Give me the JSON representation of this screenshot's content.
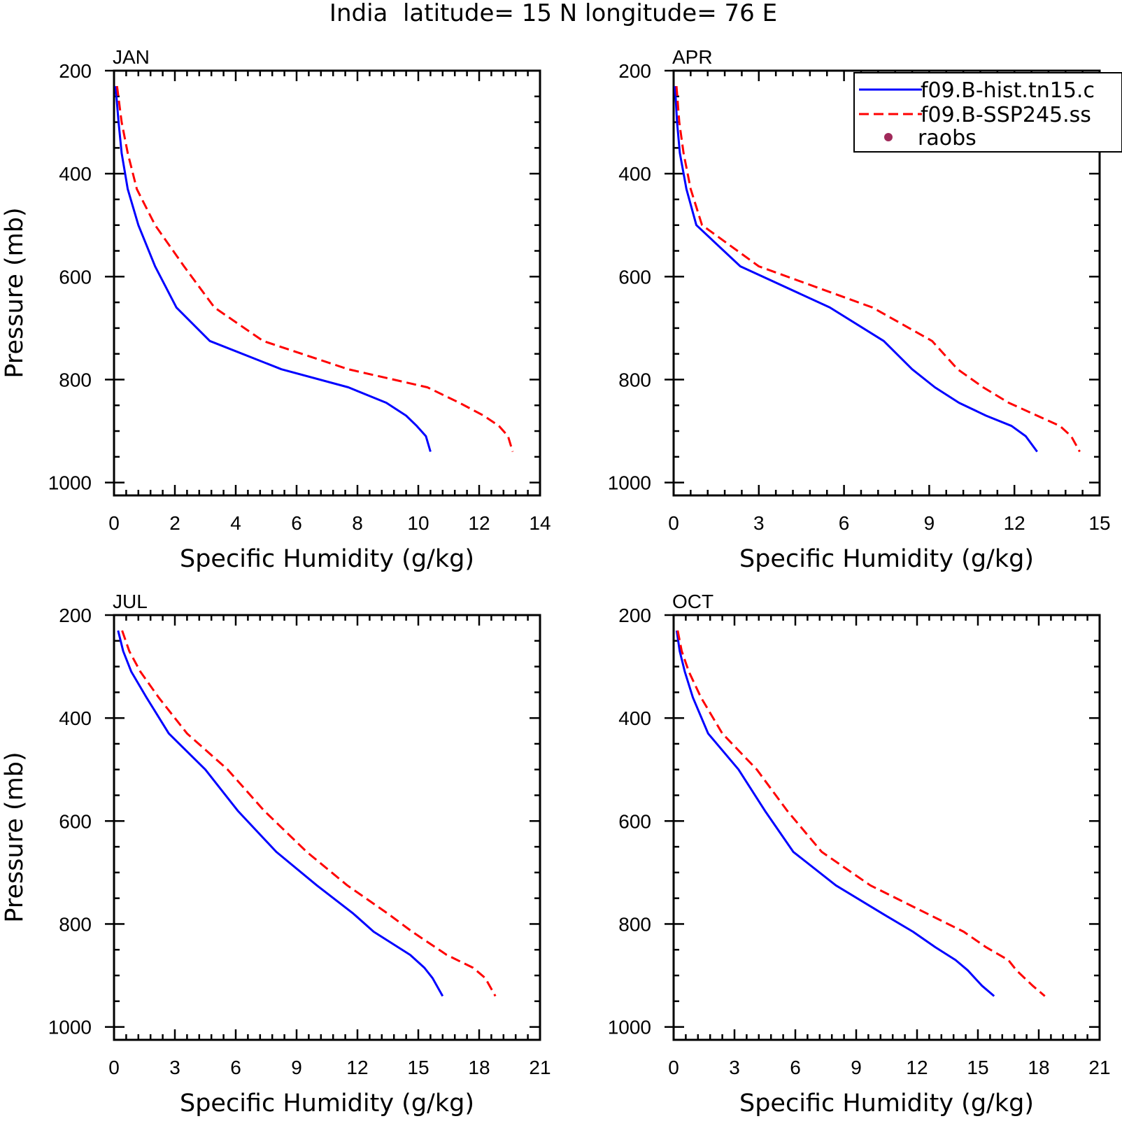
{
  "page_title": "India  latitude= 15 N longitude= 76 E",
  "legend": {
    "entries": [
      {
        "label": "f09.B-hist.tn15.c",
        "style": "solid",
        "color": "#0000ff"
      },
      {
        "label": "f09.B-SSP245.ss",
        "style": "dashed",
        "color": "#ff0000"
      },
      {
        "label": "raobs",
        "style": "dot",
        "color": "#a02a5a"
      }
    ]
  },
  "chart_data": [
    {
      "type": "line",
      "panel_label": "JAN",
      "xlabel": "Specific Humidity (g/kg)",
      "ylabel": "Pressure (mb)",
      "xlim": [
        0,
        14
      ],
      "ylim": [
        200,
        1025
      ],
      "xticks": [
        0,
        2,
        4,
        6,
        8,
        10,
        12,
        14
      ],
      "yticks": [
        200,
        400,
        600,
        800,
        1000
      ],
      "pressure": [
        230,
        300,
        360,
        430,
        500,
        580,
        660,
        725,
        780,
        815,
        845,
        870,
        890,
        910,
        940
      ],
      "series": [
        {
          "values": [
            0.05,
            0.15,
            0.25,
            0.45,
            0.8,
            1.35,
            2.05,
            3.15,
            5.5,
            7.7,
            8.95,
            9.6,
            9.95,
            10.25,
            10.4
          ]
        },
        {
          "values": [
            0.1,
            0.25,
            0.45,
            0.75,
            1.35,
            2.3,
            3.3,
            4.9,
            7.7,
            10.3,
            11.35,
            12.15,
            12.65,
            12.95,
            13.1
          ]
        }
      ]
    },
    {
      "type": "line",
      "panel_label": "APR",
      "xlabel": "Specific Humidity (g/kg)",
      "ylabel": "",
      "xlim": [
        0,
        15
      ],
      "ylim": [
        200,
        1025
      ],
      "xticks": [
        0,
        3,
        6,
        9,
        12,
        15
      ],
      "yticks": [
        200,
        400,
        600,
        800,
        1000
      ],
      "pressure": [
        230,
        300,
        360,
        430,
        500,
        580,
        660,
        725,
        780,
        815,
        845,
        870,
        890,
        910,
        940
      ],
      "series": [
        {
          "values": [
            0.05,
            0.12,
            0.22,
            0.45,
            0.8,
            2.35,
            5.5,
            7.4,
            8.4,
            9.2,
            10.05,
            11.0,
            11.9,
            12.4,
            12.8
          ]
        },
        {
          "values": [
            0.1,
            0.2,
            0.35,
            0.6,
            1.0,
            3.0,
            7.0,
            9.1,
            10.0,
            10.9,
            11.8,
            12.8,
            13.6,
            14.0,
            14.3
          ]
        }
      ]
    },
    {
      "type": "line",
      "panel_label": "JUL",
      "xlabel": "Specific Humidity (g/kg)",
      "ylabel": "Pressure (mb)",
      "xlim": [
        0,
        21
      ],
      "ylim": [
        200,
        1025
      ],
      "xticks": [
        0,
        3,
        6,
        9,
        12,
        15,
        18,
        21
      ],
      "yticks": [
        200,
        400,
        600,
        800,
        1000
      ],
      "pressure": [
        230,
        270,
        310,
        360,
        430,
        500,
        580,
        660,
        725,
        780,
        815,
        860,
        885,
        905,
        940
      ],
      "series": [
        {
          "values": [
            0.2,
            0.45,
            0.85,
            1.6,
            2.7,
            4.5,
            6.1,
            8.0,
            10.0,
            11.8,
            12.8,
            14.6,
            15.3,
            15.7,
            16.2
          ]
        },
        {
          "values": [
            0.4,
            0.75,
            1.3,
            2.2,
            3.6,
            5.6,
            7.4,
            9.5,
            11.5,
            13.5,
            14.7,
            16.4,
            17.7,
            18.3,
            18.8
          ]
        }
      ]
    },
    {
      "type": "line",
      "panel_label": "OCT",
      "xlabel": "Specific Humidity (g/kg)",
      "ylabel": "",
      "xlim": [
        0,
        21
      ],
      "ylim": [
        200,
        1025
      ],
      "xticks": [
        0,
        3,
        6,
        9,
        12,
        15,
        18,
        21
      ],
      "yticks": [
        200,
        400,
        600,
        800,
        1000
      ],
      "pressure": [
        230,
        270,
        310,
        360,
        430,
        500,
        580,
        660,
        725,
        780,
        815,
        845,
        870,
        890,
        920,
        940
      ],
      "series": [
        {
          "values": [
            0.15,
            0.3,
            0.55,
            0.95,
            1.7,
            3.2,
            4.5,
            5.9,
            8.0,
            10.3,
            11.8,
            12.9,
            13.9,
            14.5,
            15.2,
            15.8
          ]
        },
        {
          "values": [
            0.2,
            0.4,
            0.75,
            1.35,
            2.4,
            4.1,
            5.6,
            7.3,
            9.7,
            12.5,
            14.3,
            15.4,
            16.5,
            16.9,
            17.7,
            18.3
          ]
        }
      ]
    }
  ]
}
